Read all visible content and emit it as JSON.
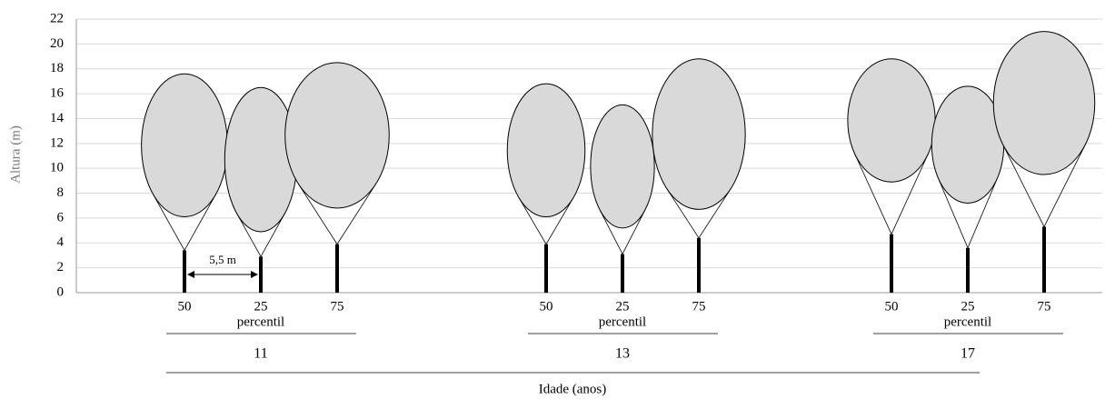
{
  "chart_data": {
    "type": "tree-profile",
    "ylabel": "Altura (m)",
    "xlabel": "Idade (anos)",
    "ylim": [
      0,
      22
    ],
    "yticks": [
      0,
      2,
      4,
      6,
      8,
      10,
      12,
      14,
      16,
      18,
      20,
      22
    ],
    "grid": true,
    "group_caption": "percentil",
    "spacing": {
      "value": 5.5,
      "label": "5,5 m"
    },
    "crown_color": "#d9d9d9",
    "groups": [
      {
        "label": "11",
        "trees": [
          {
            "percentile": "50",
            "stem": 3.4,
            "crown_base": 6.1,
            "crown_top": 17.6,
            "crown_width": 6.2
          },
          {
            "percentile": "25",
            "stem": 2.9,
            "crown_base": 4.9,
            "crown_top": 16.5,
            "crown_width": 5.2
          },
          {
            "percentile": "75",
            "stem": 3.9,
            "crown_base": 6.8,
            "crown_top": 18.5,
            "crown_width": 7.5
          }
        ]
      },
      {
        "label": "13",
        "trees": [
          {
            "percentile": "50",
            "stem": 3.9,
            "crown_base": 6.1,
            "crown_top": 16.8,
            "crown_width": 5.6
          },
          {
            "percentile": "25",
            "stem": 3.1,
            "crown_base": 5.2,
            "crown_top": 15.1,
            "crown_width": 4.6
          },
          {
            "percentile": "75",
            "stem": 4.4,
            "crown_base": 6.7,
            "crown_top": 18.8,
            "crown_width": 6.7
          }
        ]
      },
      {
        "label": "17",
        "trees": [
          {
            "percentile": "50",
            "stem": 4.7,
            "crown_base": 8.9,
            "crown_top": 18.8,
            "crown_width": 6.3
          },
          {
            "percentile": "25",
            "stem": 3.6,
            "crown_base": 7.2,
            "crown_top": 16.6,
            "crown_width": 5.2
          },
          {
            "percentile": "75",
            "stem": 5.3,
            "crown_base": 9.5,
            "crown_top": 21.0,
            "crown_width": 7.3
          }
        ]
      }
    ]
  }
}
